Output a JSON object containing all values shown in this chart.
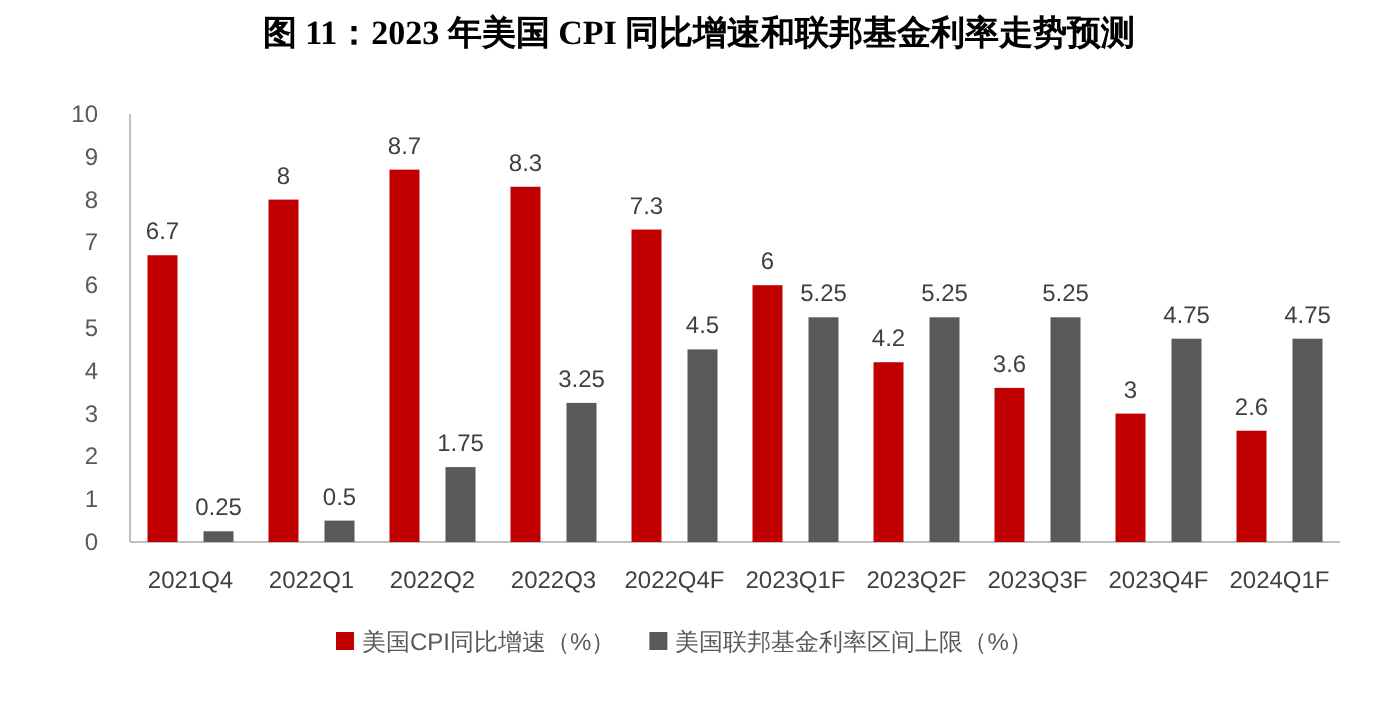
{
  "chart_data": {
    "type": "bar",
    "title": "图 11：2023 年美国 CPI 同比增速和联邦基金利率走势预测",
    "categories": [
      "2021Q4",
      "2022Q1",
      "2022Q2",
      "2022Q3",
      "2022Q4F",
      "2023Q1F",
      "2023Q2F",
      "2023Q3F",
      "2023Q4F",
      "2024Q1F"
    ],
    "series": [
      {
        "name": "美国CPI同比增速（%）",
        "color": "#c00000",
        "values": [
          6.7,
          8,
          8.7,
          8.3,
          7.3,
          6,
          4.2,
          3.6,
          3,
          2.6
        ]
      },
      {
        "name": "美国联邦基金利率区间上限（%）",
        "color": "#595959",
        "values": [
          0.25,
          0.5,
          1.75,
          3.25,
          4.5,
          5.25,
          5.25,
          5.25,
          4.75,
          4.75
        ]
      }
    ],
    "ylim": [
      0,
      10
    ],
    "yticks": [
      0,
      1,
      2,
      3,
      4,
      5,
      6,
      7,
      8,
      9,
      10
    ],
    "data_labels": true,
    "legend": "bottom",
    "grid": false
  }
}
